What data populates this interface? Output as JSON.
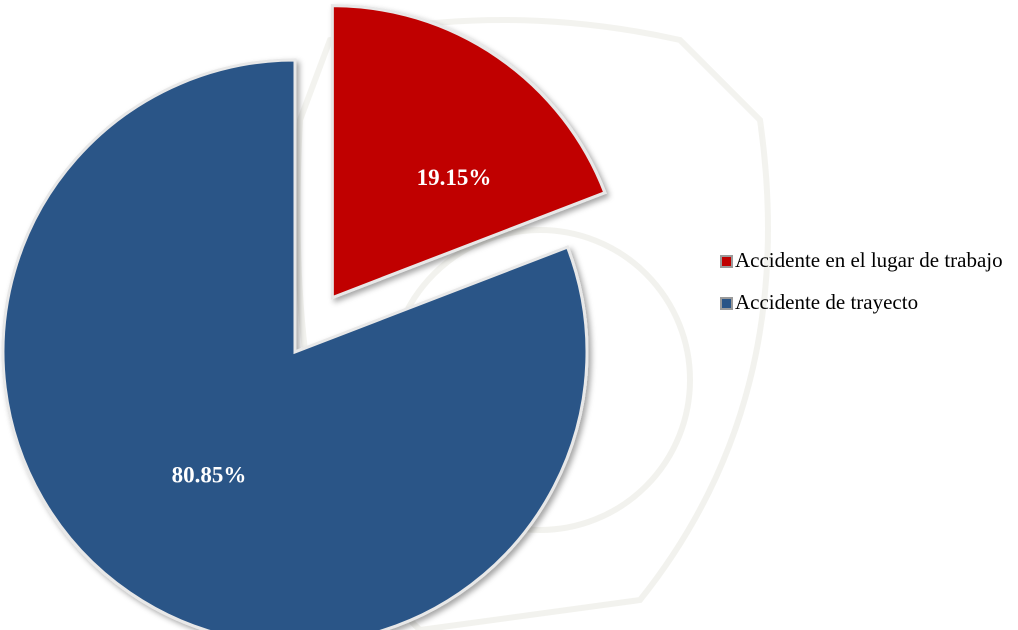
{
  "chart_data": {
    "type": "pie",
    "categories": [
      "Accidente en el lugar de trabajo",
      "Accidente de trayecto"
    ],
    "values": [
      19.15,
      80.85
    ],
    "value_labels": [
      "19.15%",
      "80.85%"
    ],
    "colors": [
      "#c00000",
      "#2a5587"
    ],
    "legend": "right"
  }
}
